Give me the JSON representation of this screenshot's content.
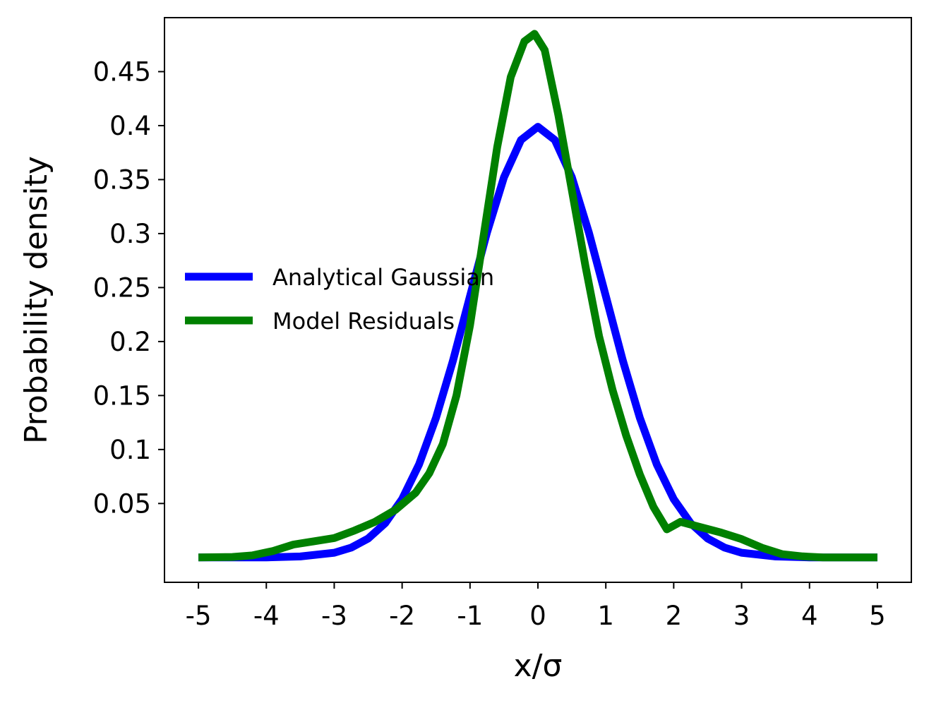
{
  "chart_data": {
    "type": "line",
    "title": "",
    "xlabel": "x/σ",
    "ylabel": "Probability density",
    "xlim": [
      -5.5,
      5.5
    ],
    "ylim": [
      -0.023,
      0.5
    ],
    "xticks": [
      -5,
      -4,
      -3,
      -2,
      -1,
      0,
      1,
      2,
      3,
      4,
      5
    ],
    "xtick_labels": [
      "-5",
      "-4",
      "-3",
      "-2",
      "-1",
      "0",
      "1",
      "2",
      "3",
      "4",
      "5"
    ],
    "yticks": [
      0.05,
      0.1,
      0.15,
      0.2,
      0.25,
      0.3,
      0.35,
      0.4,
      0.45
    ],
    "ytick_labels": [
      "0.05",
      "0.1",
      "0.15",
      "0.2",
      "0.25",
      "0.3",
      "0.35",
      "0.4",
      "0.45"
    ],
    "grid": false,
    "legend": {
      "placement": "center-left",
      "frame": false
    },
    "series": [
      {
        "name": "Analytical Gaussian",
        "color": "#0000ff",
        "x": [
          -5,
          -4.5,
          -4,
          -3.5,
          -3,
          -2.75,
          -2.5,
          -2.25,
          -2,
          -1.75,
          -1.5,
          -1.25,
          -1,
          -0.75,
          -0.5,
          -0.25,
          0,
          0.25,
          0.5,
          0.75,
          1,
          1.25,
          1.5,
          1.75,
          2,
          2.25,
          2.5,
          2.75,
          3,
          3.5,
          4,
          4.5,
          5
        ],
        "y": [
          0.0,
          0.0,
          0.0001,
          0.0009,
          0.0044,
          0.0091,
          0.0175,
          0.0317,
          0.054,
          0.0863,
          0.1295,
          0.1826,
          0.242,
          0.3011,
          0.3521,
          0.3867,
          0.3989,
          0.3867,
          0.3521,
          0.3011,
          0.242,
          0.1826,
          0.1295,
          0.0863,
          0.054,
          0.0317,
          0.0175,
          0.0091,
          0.0044,
          0.0009,
          0.0001,
          0.0,
          0.0
        ]
      },
      {
        "name": "Model Residuals",
        "color": "#008000",
        "x": [
          -5,
          -4.5,
          -4.2,
          -3.9,
          -3.6,
          -3.3,
          -3,
          -2.7,
          -2.4,
          -2.1,
          -1.8,
          -1.6,
          -1.4,
          -1.2,
          -1,
          -0.8,
          -0.6,
          -0.4,
          -0.2,
          -0.05,
          0.1,
          0.3,
          0.5,
          0.7,
          0.9,
          1.1,
          1.3,
          1.5,
          1.7,
          1.9,
          2.1,
          2.4,
          2.7,
          3,
          3.3,
          3.6,
          3.9,
          4.2,
          4.5,
          5
        ],
        "y": [
          0.0,
          0.0005,
          0.002,
          0.006,
          0.012,
          0.015,
          0.018,
          0.025,
          0.033,
          0.044,
          0.06,
          0.078,
          0.105,
          0.15,
          0.215,
          0.298,
          0.38,
          0.445,
          0.478,
          0.485,
          0.47,
          0.41,
          0.34,
          0.27,
          0.205,
          0.155,
          0.113,
          0.077,
          0.047,
          0.026,
          0.033,
          0.028,
          0.023,
          0.017,
          0.009,
          0.003,
          0.001,
          0.0,
          0.0,
          0.0
        ]
      }
    ]
  }
}
